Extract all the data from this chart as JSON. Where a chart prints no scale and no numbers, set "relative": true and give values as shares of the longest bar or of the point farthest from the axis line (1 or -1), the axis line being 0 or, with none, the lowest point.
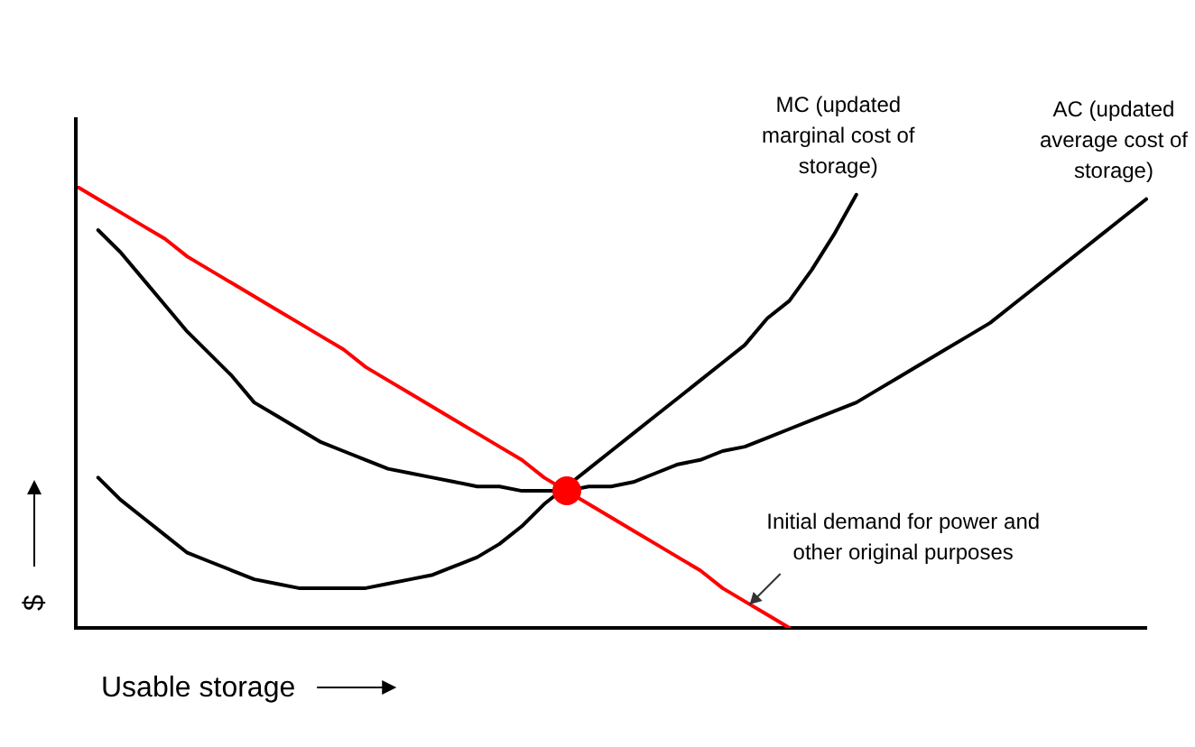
{
  "chart_data": {
    "type": "line",
    "relative": true,
    "xlabel": "Usable storage",
    "ylabel": "$",
    "legend": false,
    "grid": false,
    "marker": "none",
    "line_style": "solid",
    "categories": [
      null,
      null,
      null,
      null,
      null,
      null,
      null,
      null,
      null,
      null,
      null,
      null,
      null,
      null,
      null,
      null,
      null,
      null,
      null,
      null,
      null,
      null,
      null,
      null,
      null,
      null,
      null,
      null,
      null,
      null,
      null,
      null,
      null,
      null,
      null,
      null,
      null,
      null,
      null,
      null,
      null,
      null,
      null,
      null,
      null,
      null,
      null,
      null,
      null
    ],
    "series": [
      {
        "name": "Initial demand for power and other original purposes",
        "color": "#ff0000",
        "values": [
          1,
          0.97,
          0.94,
          0.91,
          0.88,
          0.84,
          0.81,
          0.78,
          0.75,
          0.72,
          0.69,
          0.66,
          0.63,
          0.59,
          0.56,
          0.53,
          0.5,
          0.47,
          0.44,
          0.41,
          0.38,
          0.34,
          0.31,
          0.28,
          0.25,
          0.22,
          0.19,
          0.16,
          0.13,
          0.09,
          0.06,
          0.03,
          0,
          null,
          null,
          null,
          null,
          null,
          null,
          null,
          null,
          null,
          null,
          null,
          null,
          null,
          null,
          null,
          null
        ]
      },
      {
        "name": "AC (updated average cost of storage)",
        "color": "#000000",
        "values": [
          null,
          0.9,
          0.85,
          0.79,
          0.73,
          0.67,
          0.62,
          0.57,
          0.51,
          0.48,
          0.45,
          0.42,
          0.4,
          0.38,
          0.36,
          0.35,
          0.34,
          0.33,
          0.32,
          0.32,
          0.31,
          0.31,
          0.31,
          0.32,
          0.32,
          0.33,
          0.35,
          0.37,
          0.38,
          0.4,
          0.41,
          0.43,
          0.45,
          0.47,
          0.49,
          0.51,
          0.54,
          0.57,
          0.6,
          0.63,
          0.66,
          0.69,
          0.73,
          0.77,
          0.81,
          0.85,
          0.89,
          0.93,
          0.97
        ]
      },
      {
        "name": "MC (updated marginal cost of storage)",
        "color": "#000000",
        "values": [
          null,
          0.34,
          0.29,
          0.25,
          0.21,
          0.17,
          0.15,
          0.13,
          0.11,
          0.1,
          0.09,
          0.09,
          0.09,
          0.09,
          0.1,
          0.11,
          0.12,
          0.14,
          0.16,
          0.19,
          0.23,
          0.28,
          0.32,
          0.36,
          0.4,
          0.44,
          0.48,
          0.52,
          0.56,
          0.6,
          0.64,
          0.7,
          0.74,
          0.81,
          0.89,
          0.98,
          null,
          null,
          null,
          null,
          null,
          null,
          null,
          null,
          null,
          null,
          null,
          null,
          null
        ]
      }
    ]
  }
}
